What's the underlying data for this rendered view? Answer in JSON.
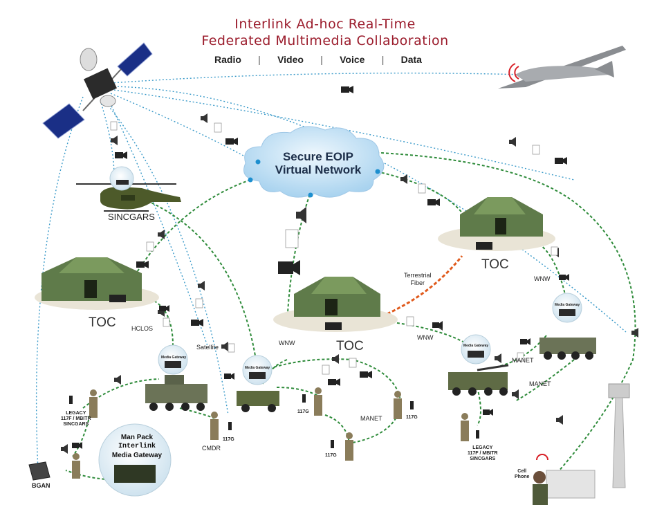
{
  "title": {
    "line1": "Interlink Ad-hoc Real-Time",
    "line2": "Federated Multimedia Collaboration"
  },
  "subnav": [
    "Radio",
    "Video",
    "Voice",
    "Data"
  ],
  "cloud": {
    "line1": "Secure EOIP",
    "line2": "Virtual Network"
  },
  "labels": {
    "sincgars": "SINCGARS",
    "toc": "TOC",
    "hclos": "HCLOS",
    "satellite": "Satellite",
    "wnw": "WNW",
    "manet": "MANET",
    "terrestrial": "Terrestrial",
    "fiber": "Fiber",
    "cmdr": "CMDR",
    "bgan": "BGAN",
    "g117": "117G",
    "legacy1": "LEGACY",
    "legacy2": "117F / MBITR",
    "legacy3": "SINCGARS",
    "cell1": "Cell",
    "cell2": "Phone",
    "media_gateway": "Media Gateway"
  },
  "manpack": {
    "line1": "Man Pack",
    "line2": "Interlink",
    "line3": "Media Gateway"
  },
  "colors": {
    "title": "#9b1c2c",
    "satellite_link": "#3a9ac9",
    "ground_link": "#2e8b3a",
    "fiber_link": "#e05a1c",
    "cloud_fill": "#cfe6f6"
  }
}
